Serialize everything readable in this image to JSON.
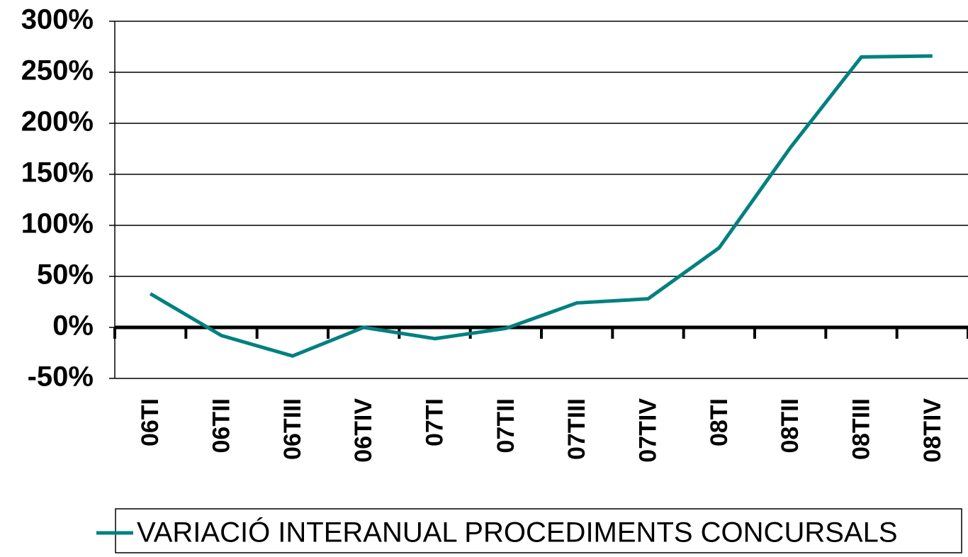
{
  "chart_data": {
    "type": "line",
    "categories": [
      "06TI",
      "06TII",
      "06TIII",
      "06TIV",
      "07TI",
      "07TII",
      "07TIII",
      "07TIV",
      "08TI",
      "08TII",
      "08TIII",
      "08TIV"
    ],
    "series": [
      {
        "name": "VARIACIÓ INTERANUAL PROCEDIMENTS CONCURSALS",
        "color": "#008080",
        "values": [
          33,
          -8,
          -28,
          0,
          -11,
          -1,
          24,
          28,
          78,
          176,
          265,
          266
        ]
      }
    ],
    "ylim": [
      -50,
      300
    ],
    "yticks": [
      {
        "value": -50,
        "label": "-50%"
      },
      {
        "value": 0,
        "label": "0%"
      },
      {
        "value": 50,
        "label": "50%"
      },
      {
        "value": 100,
        "label": "100%"
      },
      {
        "value": 150,
        "label": "150%"
      },
      {
        "value": 200,
        "label": "200%"
      },
      {
        "value": 250,
        "label": "250%"
      },
      {
        "value": 300,
        "label": "300%"
      }
    ],
    "grid": true,
    "legend": "bottom"
  }
}
